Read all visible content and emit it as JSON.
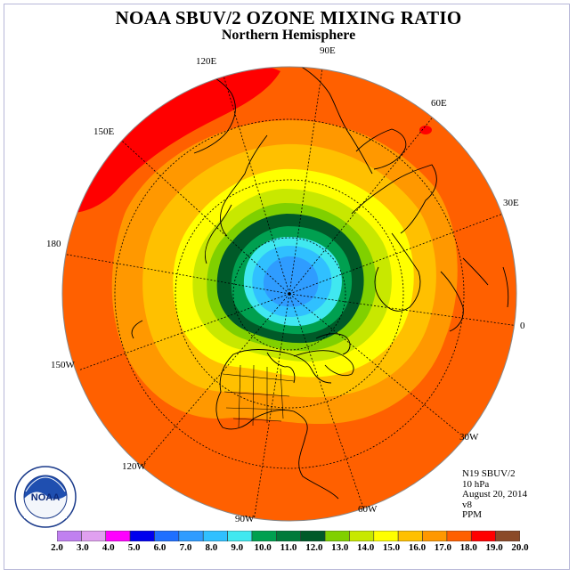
{
  "title": "NOAA SBUV/2 OZONE MIXING RATIO",
  "subtitle": "Northern Hemisphere",
  "longitude_labels": {
    "lon_90e": "90E",
    "lon_60e": "60E",
    "lon_30e": "30E",
    "lon_0": "0",
    "lon_30w": "30W",
    "lon_60w": "60W",
    "lon_90w": "90W",
    "lon_120w": "120W",
    "lon_150w": "150W",
    "lon_180": "180",
    "lon_150e": "150E",
    "lon_120e": "120E"
  },
  "info": {
    "instrument": "N19 SBUV/2",
    "level": "10 hPa",
    "date": "August 20, 2014",
    "version": "v8",
    "units": "PPM"
  },
  "logo": {
    "text": "NOAA",
    "ring_text": "NATIONAL OCEANIC AND ATMOSPHERIC ADMINISTRATION · U.S. DEPARTMENT OF COMMERCE"
  },
  "colorbar": {
    "ticks": [
      "2.0",
      "3.0",
      "4.0",
      "5.0",
      "6.0",
      "7.0",
      "8.0",
      "9.0",
      "10.0",
      "11.0",
      "12.0",
      "13.0",
      "14.0",
      "15.0",
      "16.0",
      "17.0",
      "18.0",
      "19.0",
      "20.0"
    ],
    "colors": [
      "#c080f0",
      "#e0a0f0",
      "#ff00ff",
      "#0000ee",
      "#1f6fff",
      "#2f9cff",
      "#30c0ff",
      "#40e8f0",
      "#00a050",
      "#007a3a",
      "#005a28",
      "#80d000",
      "#c8e800",
      "#ffff00",
      "#ffc000",
      "#ff9800",
      "#ff6000",
      "#ff0000",
      "#8b4a28"
    ]
  },
  "chart_data": {
    "type": "map",
    "projection": "north polar stereographic",
    "variable": "ozone mixing ratio",
    "units": "PPM",
    "pressure_level": "10 hPa",
    "date": "August 20, 2014",
    "contour_bands": [
      {
        "range": [
          9.0,
          10.0
        ],
        "color": "#40e8f0",
        "region": "pole, central core"
      },
      {
        "range": [
          8.0,
          9.0
        ],
        "color": "#30c0ff",
        "region": "pole, small patch"
      },
      {
        "range": [
          10.0,
          11.0
        ],
        "color": "#00a050",
        "region": "ring around pole"
      },
      {
        "range": [
          11.0,
          12.0
        ],
        "color": "#005a28",
        "region": "ring around pole"
      },
      {
        "range": [
          12.0,
          13.0
        ],
        "color": "#80d000",
        "region": "~65-70N"
      },
      {
        "range": [
          13.0,
          14.0
        ],
        "color": "#c8e800",
        "region": "~60-65N"
      },
      {
        "range": [
          14.0,
          15.0
        ],
        "color": "#ffff00",
        "region": "~55N"
      },
      {
        "range": [
          15.0,
          16.0
        ],
        "color": "#ffc000",
        "region": "~50N"
      },
      {
        "range": [
          16.0,
          17.0
        ],
        "color": "#ff9800",
        "region": "~40N"
      },
      {
        "range": [
          17.0,
          18.0
        ],
        "color": "#ff6000",
        "region": "~30-0N"
      },
      {
        "range": [
          18.0,
          19.0
        ],
        "color": "#ff0000",
        "region": "Pacific near 120E-150E, small patch near 60E"
      }
    ]
  }
}
